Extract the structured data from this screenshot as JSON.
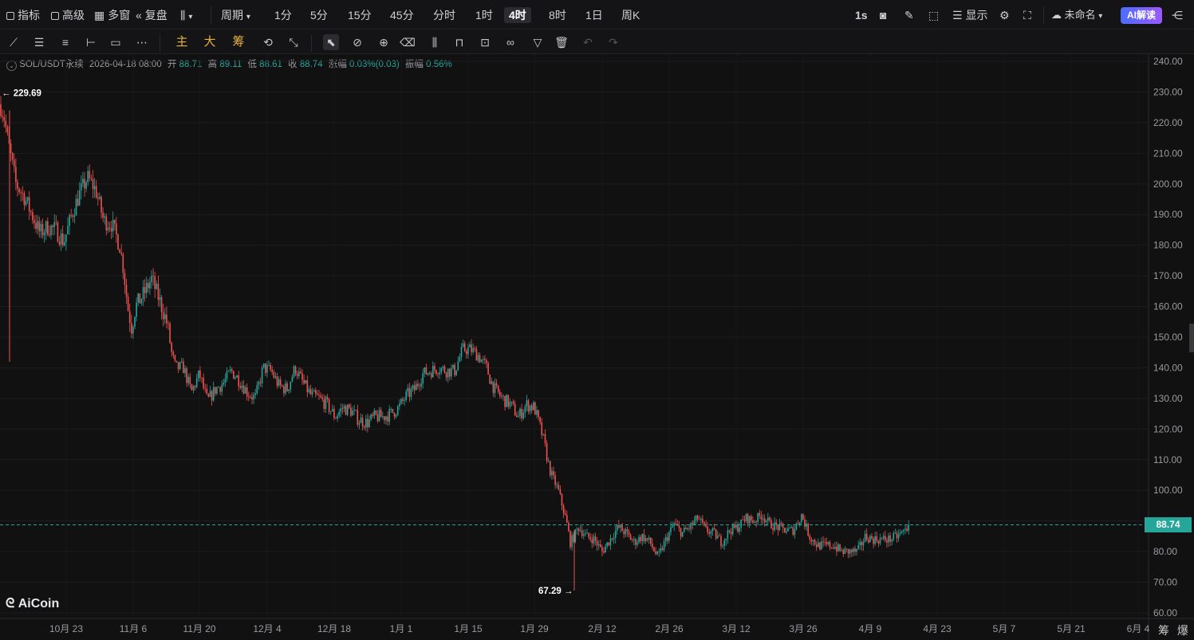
{
  "topbar": {
    "indicators": "指标",
    "advanced": "高级",
    "multi_window": "多窗",
    "replay": "复盘",
    "period": "周期",
    "timeframes": [
      "1分",
      "5分",
      "15分",
      "45分",
      "分时",
      "1时",
      "4时",
      "8时",
      "1日",
      "周K"
    ],
    "active_timeframe": "4时",
    "refresh_rate": "1s",
    "display": "显示",
    "layout_name": "未命名",
    "ai_button": "AI解读"
  },
  "toolbar2": {
    "main": "主",
    "big": "大",
    "chip": "筹"
  },
  "info": {
    "symbol": "SOL/USDT永续",
    "datetime": "2026-04-18 08:00",
    "open_label": "开",
    "open": "88.71",
    "high_label": "高",
    "high": "89.11",
    "low_label": "低",
    "low": "88.61",
    "close_label": "收",
    "close": "88.74",
    "change_label": "涨幅",
    "change": "0.03%(0.03)",
    "amplitude_label": "振幅",
    "amplitude": "0.56%"
  },
  "chart_data": {
    "type": "candlestick",
    "xlabels": [
      "10月 23",
      "11月 6",
      "11月 20",
      "12月 4",
      "12月 18",
      "1月 1",
      "1月 15",
      "1月 29",
      "2月 12",
      "2月 26",
      "3月 12",
      "3月 26",
      "4月 9",
      "4月 23",
      "5月 7",
      "5月 21",
      "6月 4"
    ],
    "yticks": [
      "240.00",
      "230.00",
      "220.00",
      "210.00",
      "200.00",
      "190.00",
      "180.00",
      "170.00",
      "160.00",
      "150.00",
      "140.00",
      "130.00",
      "120.00",
      "110.00",
      "100.00",
      "90.00",
      "80.00",
      "70.00",
      "60.00"
    ],
    "ylim": [
      60,
      240
    ],
    "current_price": "88.74",
    "max_marker": "229.69",
    "min_marker": "67.29",
    "path": [
      [
        0,
        226
      ],
      [
        5,
        222
      ],
      [
        10,
        214
      ],
      [
        20,
        200
      ],
      [
        30,
        196
      ],
      [
        40,
        190
      ],
      [
        50,
        184
      ],
      [
        60,
        186
      ],
      [
        70,
        185
      ],
      [
        80,
        181
      ],
      [
        90,
        190
      ],
      [
        100,
        197
      ],
      [
        110,
        202
      ],
      [
        120,
        198
      ],
      [
        130,
        188
      ],
      [
        140,
        187
      ],
      [
        150,
        180
      ],
      [
        155,
        172
      ],
      [
        160,
        160
      ],
      [
        165,
        153
      ],
      [
        170,
        160
      ],
      [
        180,
        164
      ],
      [
        190,
        169
      ],
      [
        200,
        162
      ],
      [
        210,
        154
      ],
      [
        215,
        145
      ],
      [
        220,
        140
      ],
      [
        230,
        140
      ],
      [
        240,
        132
      ],
      [
        250,
        138
      ],
      [
        260,
        129
      ],
      [
        270,
        133
      ],
      [
        280,
        135
      ],
      [
        290,
        139
      ],
      [
        300,
        136
      ],
      [
        310,
        132
      ],
      [
        320,
        130
      ],
      [
        330,
        140
      ],
      [
        340,
        139
      ],
      [
        350,
        134
      ],
      [
        360,
        133
      ],
      [
        370,
        140
      ],
      [
        380,
        135
      ],
      [
        390,
        131
      ],
      [
        400,
        130
      ],
      [
        410,
        128
      ],
      [
        420,
        124
      ],
      [
        430,
        127
      ],
      [
        440,
        126
      ],
      [
        450,
        123
      ],
      [
        460,
        122
      ],
      [
        470,
        124
      ],
      [
        480,
        124
      ],
      [
        490,
        125
      ],
      [
        500,
        127
      ],
      [
        510,
        131
      ],
      [
        520,
        133
      ],
      [
        530,
        138
      ],
      [
        540,
        139
      ],
      [
        550,
        140
      ],
      [
        560,
        139
      ],
      [
        570,
        139
      ],
      [
        580,
        146
      ],
      [
        590,
        146
      ],
      [
        600,
        144
      ],
      [
        610,
        140
      ],
      [
        615,
        136
      ],
      [
        620,
        133
      ],
      [
        630,
        130
      ],
      [
        640,
        128
      ],
      [
        650,
        124
      ],
      [
        660,
        128
      ],
      [
        670,
        127
      ],
      [
        680,
        118
      ],
      [
        690,
        106
      ],
      [
        700,
        100
      ],
      [
        710,
        90
      ],
      [
        715,
        83
      ],
      [
        720,
        85
      ],
      [
        725,
        88
      ],
      [
        735,
        85
      ],
      [
        745,
        84
      ],
      [
        755,
        80
      ],
      [
        765,
        84
      ],
      [
        775,
        88
      ],
      [
        785,
        86
      ],
      [
        795,
        83
      ],
      [
        805,
        85
      ],
      [
        815,
        83
      ],
      [
        825,
        78
      ],
      [
        835,
        84
      ],
      [
        845,
        89
      ],
      [
        855,
        86
      ],
      [
        865,
        88
      ],
      [
        875,
        91
      ],
      [
        885,
        87
      ],
      [
        895,
        86
      ],
      [
        905,
        83
      ],
      [
        915,
        87
      ],
      [
        925,
        88
      ],
      [
        935,
        91
      ],
      [
        945,
        90
      ],
      [
        955,
        92
      ],
      [
        965,
        89
      ],
      [
        975,
        88
      ],
      [
        985,
        87
      ],
      [
        995,
        87
      ],
      [
        1005,
        92
      ],
      [
        1015,
        85
      ],
      [
        1025,
        82
      ],
      [
        1035,
        82
      ],
      [
        1045,
        82
      ],
      [
        1055,
        80
      ],
      [
        1065,
        80
      ],
      [
        1075,
        80
      ],
      [
        1085,
        85
      ],
      [
        1095,
        84
      ],
      [
        1105,
        84
      ],
      [
        1115,
        84
      ],
      [
        1125,
        85
      ],
      [
        1135,
        87
      ],
      [
        1140,
        88.74
      ]
    ],
    "xlim": [
      0,
      1440
    ]
  },
  "brand": {
    "logo_text": "AiCoin",
    "corner_chip": "筹",
    "corner_burst": "爆"
  },
  "colors": {
    "up": "#26a69a",
    "down": "#ef5350",
    "background": "#111112",
    "price_line": "#26a69a"
  }
}
